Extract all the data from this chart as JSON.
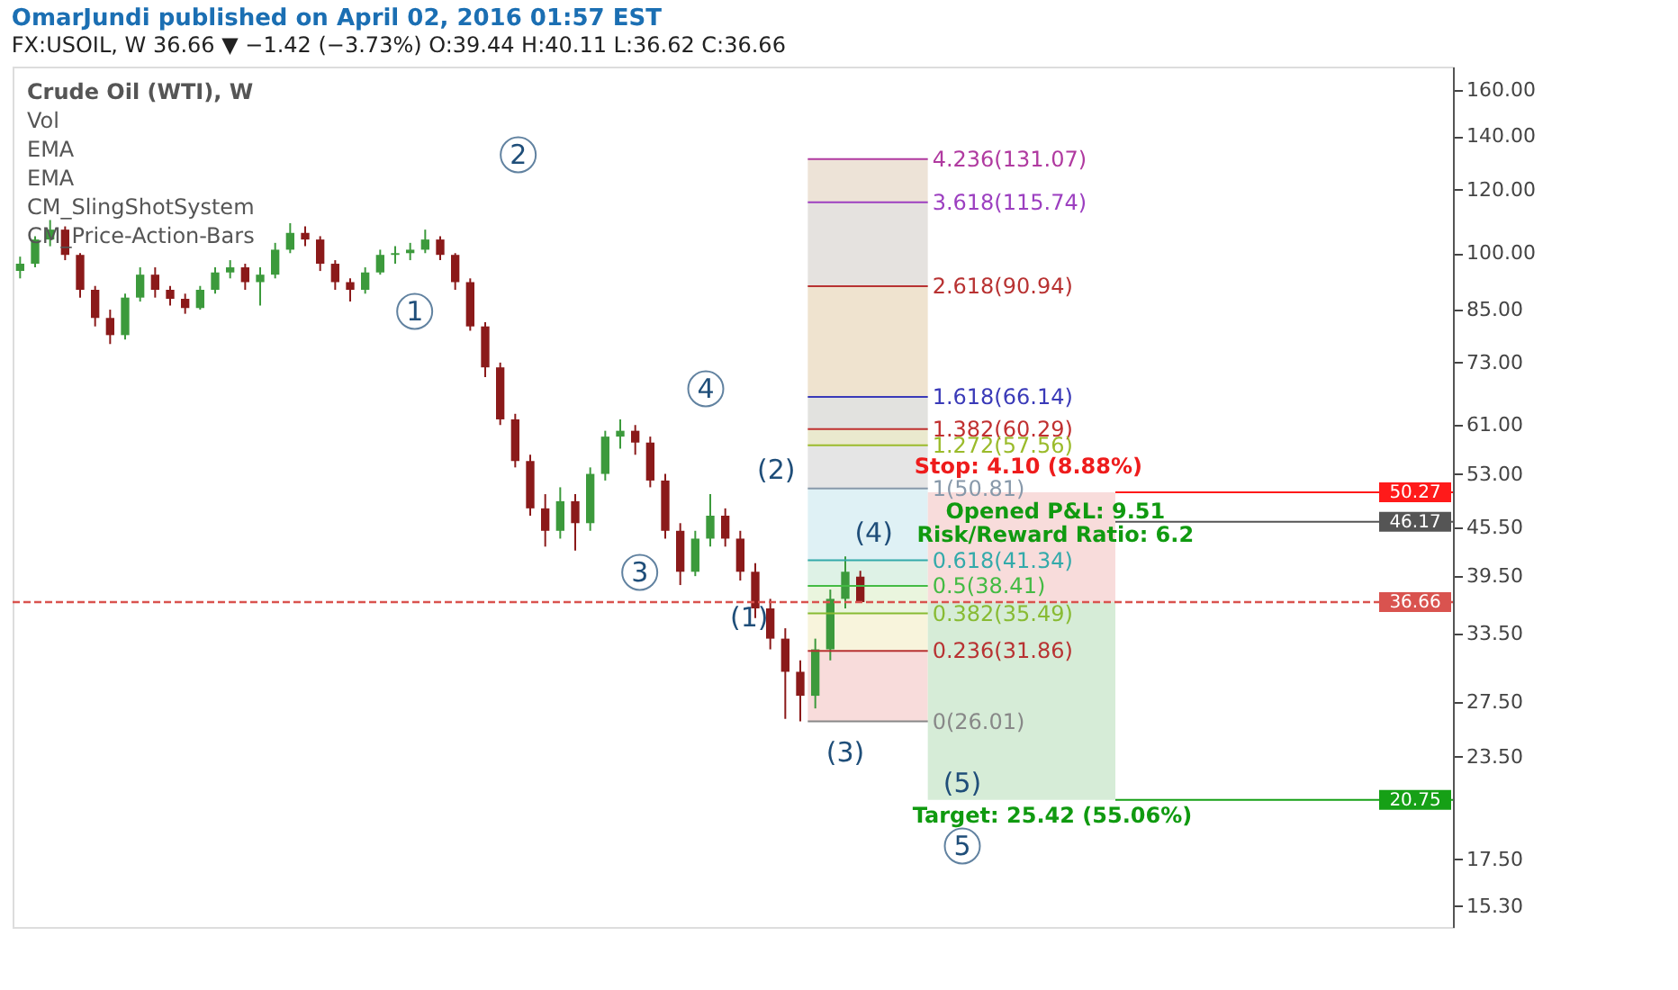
{
  "chart_data": {
    "type": "candlestick",
    "title": "OmarJundi published on April 02, 2016 01:57 EST",
    "subtitle": "FX:USOIL, W  36.66 ▼ −1.42 (−3.73%)  O:39.44  H:40.11  L:36.62  C:36.66",
    "categories": [
      null,
      null,
      null,
      null,
      null,
      null,
      null,
      null,
      null,
      null,
      null,
      null,
      null,
      null,
      null,
      null,
      null,
      null,
      null,
      null,
      null,
      null,
      null,
      null,
      null,
      null,
      null,
      null,
      null,
      null,
      null,
      null,
      null,
      null,
      null,
      null,
      null,
      null,
      null,
      null,
      null,
      null,
      null,
      null,
      null,
      null,
      null,
      null,
      null,
      null,
      null,
      null,
      null,
      null,
      null,
      null,
      null,
      null,
      null,
      null,
      null,
      null,
      null,
      null,
      null,
      null,
      null,
      null,
      null,
      null,
      null,
      null,
      null,
      null,
      null,
      null,
      null,
      null,
      null,
      null,
      null,
      null,
      null,
      null,
      null,
      null,
      null,
      null,
      null,
      null,
      null,
      null,
      null,
      null,
      null,
      null
    ],
    "ohlc": [
      [
        95,
        99,
        93,
        97
      ],
      [
        97,
        105,
        96,
        104
      ],
      [
        104,
        110,
        102,
        107
      ],
      [
        107,
        108,
        98,
        99.5
      ],
      [
        99.5,
        100,
        88,
        90
      ],
      [
        90,
        91,
        81,
        83
      ],
      [
        83,
        85,
        77,
        79
      ],
      [
        79,
        89,
        78,
        88
      ],
      [
        88,
        96,
        87,
        94
      ],
      [
        94,
        96,
        88,
        90
      ],
      [
        90,
        91,
        86,
        87.7
      ],
      [
        87.7,
        89,
        84,
        85.4
      ],
      [
        85.4,
        91,
        85,
        90
      ],
      [
        90,
        96,
        89,
        94.6
      ],
      [
        94.6,
        98,
        93,
        96
      ],
      [
        96,
        97,
        90,
        92
      ],
      [
        92,
        96,
        86,
        94
      ],
      [
        94,
        103,
        93,
        101
      ],
      [
        101,
        109,
        100,
        106
      ],
      [
        106,
        108,
        102,
        104
      ],
      [
        104,
        105,
        95,
        97
      ],
      [
        97,
        98,
        90,
        92
      ],
      [
        92,
        93,
        87,
        90
      ],
      [
        90,
        96,
        89,
        94.6
      ],
      [
        94.6,
        101,
        94,
        99.5
      ],
      [
        99.5,
        102,
        97,
        100
      ],
      [
        100,
        103,
        98,
        101
      ],
      [
        101,
        107,
        100,
        104
      ],
      [
        104,
        105,
        98,
        99.5
      ],
      [
        99.5,
        100,
        90,
        92
      ],
      [
        92,
        93,
        80,
        81
      ],
      [
        81,
        82,
        70,
        72
      ],
      [
        72,
        73,
        61,
        62
      ],
      [
        62,
        63,
        54,
        55
      ],
      [
        55,
        56,
        47,
        48
      ],
      [
        48,
        50,
        43,
        45
      ],
      [
        45,
        51,
        44,
        49
      ],
      [
        49,
        50,
        42.5,
        46
      ],
      [
        46,
        54,
        45,
        53
      ],
      [
        53,
        60,
        52,
        59
      ],
      [
        59,
        62,
        57,
        60
      ],
      [
        60,
        61,
        56,
        58
      ],
      [
        58,
        59,
        51,
        52
      ],
      [
        52,
        53,
        44,
        45
      ],
      [
        45,
        46,
        38.5,
        40
      ],
      [
        40,
        45,
        39.5,
        44
      ],
      [
        44,
        50,
        43,
        47
      ],
      [
        47,
        48,
        43,
        44
      ],
      [
        44,
        45,
        39,
        40
      ],
      [
        40,
        41,
        35,
        36
      ],
      [
        36,
        37,
        32,
        33
      ],
      [
        33,
        34,
        26.2,
        30
      ],
      [
        30,
        31,
        26.01,
        28
      ],
      [
        28,
        33,
        27,
        32
      ],
      [
        32,
        38,
        31,
        37
      ],
      [
        37,
        41.8,
        36,
        40
      ],
      [
        39.44,
        40.11,
        36.62,
        36.66
      ],
      null,
      null,
      null,
      null,
      null,
      null,
      null,
      null,
      null,
      null,
      null,
      null,
      null,
      null,
      null,
      null,
      null,
      null,
      null,
      null,
      null,
      null,
      null,
      null,
      null,
      null,
      null,
      null,
      null,
      null,
      null,
      null,
      null,
      null,
      null,
      null,
      null,
      null,
      null
    ],
    "ylim": [
      14.4,
      171
    ],
    "yticks": [
      {
        "value": 15.3,
        "label": "15.30"
      },
      {
        "value": 17.5,
        "label": "17.50"
      },
      {
        "value": 23.5,
        "label": "23.50"
      },
      {
        "value": 27.5,
        "label": "27.50"
      },
      {
        "value": 33.5,
        "label": "33.50"
      },
      {
        "value": 39.5,
        "label": "39.50"
      },
      {
        "value": 45.5,
        "label": "45.50"
      },
      {
        "value": 53,
        "label": "53.00"
      },
      {
        "value": 61,
        "label": "61.00"
      },
      {
        "value": 73,
        "label": "73.00"
      },
      {
        "value": 85,
        "label": "85.00"
      },
      {
        "value": 100,
        "label": "100.00"
      },
      {
        "value": 120,
        "label": "120.00"
      },
      {
        "value": 140,
        "label": "140.00"
      },
      {
        "value": 160,
        "label": "160.00"
      }
    ],
    "log": "y",
    "grid": false,
    "tick_labels": "y",
    "bands": [
      {
        "axis": "y",
        "from": 26.01,
        "to": 31.86,
        "color": "#f6d0cf"
      },
      {
        "axis": "y",
        "from": 31.86,
        "to": 35.49,
        "color": "#f6f0d0"
      },
      {
        "axis": "y",
        "from": 35.49,
        "to": 38.41,
        "color": "#e3f1d3"
      },
      {
        "axis": "y",
        "from": 38.41,
        "to": 41.34,
        "color": "#d3eedd"
      },
      {
        "axis": "y",
        "from": 41.34,
        "to": 50.81,
        "color": "#d4ecf2"
      },
      {
        "axis": "y",
        "from": 50.81,
        "to": 57.56,
        "color": "#dcdcdc"
      },
      {
        "axis": "y",
        "from": 57.56,
        "to": 60.29,
        "color": "#e3e2bd"
      },
      {
        "axis": "y",
        "from": 60.29,
        "to": 66.14,
        "color": "#d8d8d4"
      },
      {
        "axis": "y",
        "from": 66.14,
        "to": 90.94,
        "color": "#ead9bf"
      },
      {
        "axis": "y",
        "from": 90.94,
        "to": 115.74,
        "color": "#dcd8d4"
      },
      {
        "axis": "y",
        "from": 115.74,
        "to": 131.07,
        "color": "#e7d9c9"
      },
      {
        "axis": "y",
        "from": 36.66,
        "to": 50.27,
        "color": "#f6d0cf"
      },
      {
        "axis": "y",
        "from": 20.75,
        "to": 36.66,
        "color": "#c8e6c9"
      }
    ],
    "ref_lines": [
      {
        "axis": "y",
        "value": 131.07,
        "label": "4.236(131.07)",
        "color": "#b03aa0",
        "line_style": "solid"
      },
      {
        "axis": "y",
        "value": 115.74,
        "label": "3.618(115.74)",
        "color": "#9c3fc0",
        "line_style": "solid"
      },
      {
        "axis": "y",
        "value": 90.94,
        "label": "2.618(90.94)",
        "color": "#b83232",
        "line_style": "solid"
      },
      {
        "axis": "y",
        "value": 66.14,
        "label": "1.618(66.14)",
        "color": "#3a3ab8",
        "line_style": "solid"
      },
      {
        "axis": "y",
        "value": 60.29,
        "label": "1.382(60.29)",
        "color": "#c03030",
        "line_style": "solid"
      },
      {
        "axis": "y",
        "value": 57.56,
        "label": "1.272(57.56)",
        "color": "#9bbb2b",
        "line_style": "solid"
      },
      {
        "axis": "y",
        "value": 50.81,
        "label": "1(50.81)",
        "color": "#8899aa",
        "line_style": "solid"
      },
      {
        "axis": "y",
        "value": 41.34,
        "label": "0.618(41.34)",
        "color": "#33aaaa",
        "line_style": "solid"
      },
      {
        "axis": "y",
        "value": 38.41,
        "label": "0.5(38.41)",
        "color": "#44bb44",
        "line_style": "solid"
      },
      {
        "axis": "y",
        "value": 35.49,
        "label": "0.382(35.49)",
        "color": "#88bb33",
        "line_style": "solid"
      },
      {
        "axis": "y",
        "value": 31.86,
        "label": "0.236(31.86)",
        "color": "#b83232",
        "line_style": "solid"
      },
      {
        "axis": "y",
        "value": 26.01,
        "label": "0(26.01)",
        "color": "#888888",
        "line_style": "solid"
      },
      {
        "axis": "y",
        "value": 50.27,
        "label": "50.27",
        "color": "#ff1a1a"
      },
      {
        "axis": "y",
        "value": 46.17,
        "label": "46.17",
        "color": "#555555"
      },
      {
        "axis": "y",
        "value": 36.66,
        "label": "36.66",
        "color": "#d9534f",
        "line_style": "dotted"
      },
      {
        "axis": "y",
        "value": 20.75,
        "label": "20.75",
        "color": "#16a016"
      }
    ],
    "annotations": [
      "Crude Oil (WTI), W",
      "Vol",
      "EMA",
      "EMA",
      "CM_SlingShotSystem",
      "CM_Price-Action-Bars",
      "1",
      "2",
      "3",
      "4",
      "(1)",
      "(2)",
      "(3)",
      "(4)",
      "(5)",
      "5",
      "Stop: 4.10 (8.88%)",
      "Opened P&L: 9.51",
      "Risk/Reward Ratio: 6.2",
      "Target: 25.42 (55.06%)"
    ]
  }
}
